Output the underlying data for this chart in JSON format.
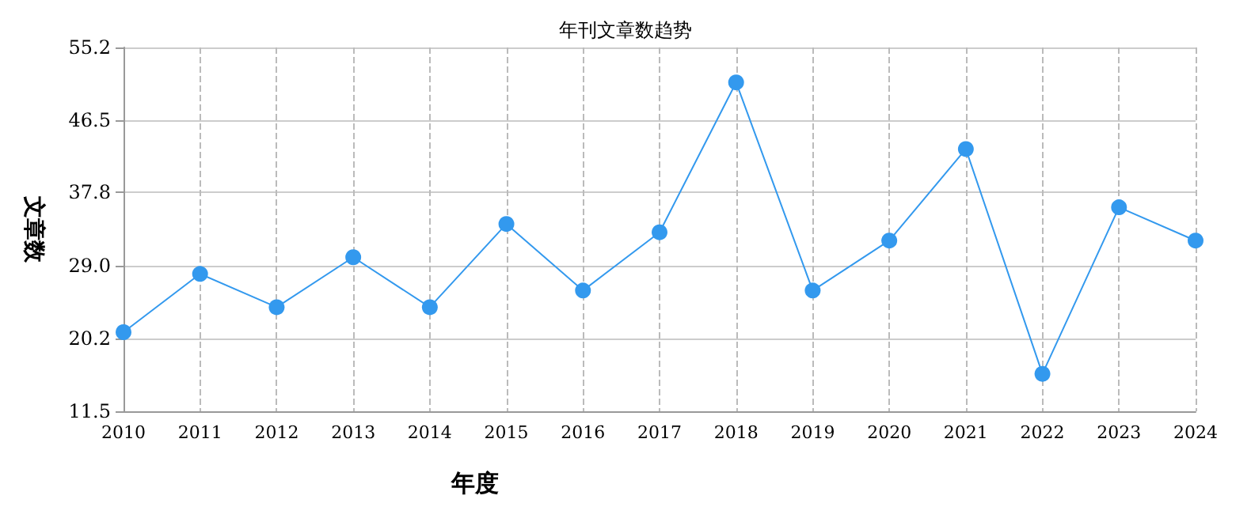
{
  "chart_data": {
    "type": "line",
    "title": "年刊文章数趋势",
    "xlabel": "年度",
    "ylabel": "文章数",
    "categories": [
      "2010",
      "2011",
      "2012",
      "2013",
      "2014",
      "2015",
      "2016",
      "2017",
      "2018",
      "2019",
      "2020",
      "2021",
      "2022",
      "2023",
      "2024"
    ],
    "series": [
      {
        "color": "#3399ee",
        "values": [
          21,
          28,
          24,
          30,
          24,
          34,
          26,
          33,
          51,
          26,
          32,
          43,
          16,
          36,
          32
        ]
      }
    ],
    "ylim": [
      11.5,
      55.2
    ],
    "yticks": [
      11.5,
      20.2,
      {
        "value": 29,
        "label": "29.0"
      },
      37.8,
      46.5,
      55.2
    ],
    "grid": true,
    "marker": "circle",
    "line_style": "solid"
  }
}
